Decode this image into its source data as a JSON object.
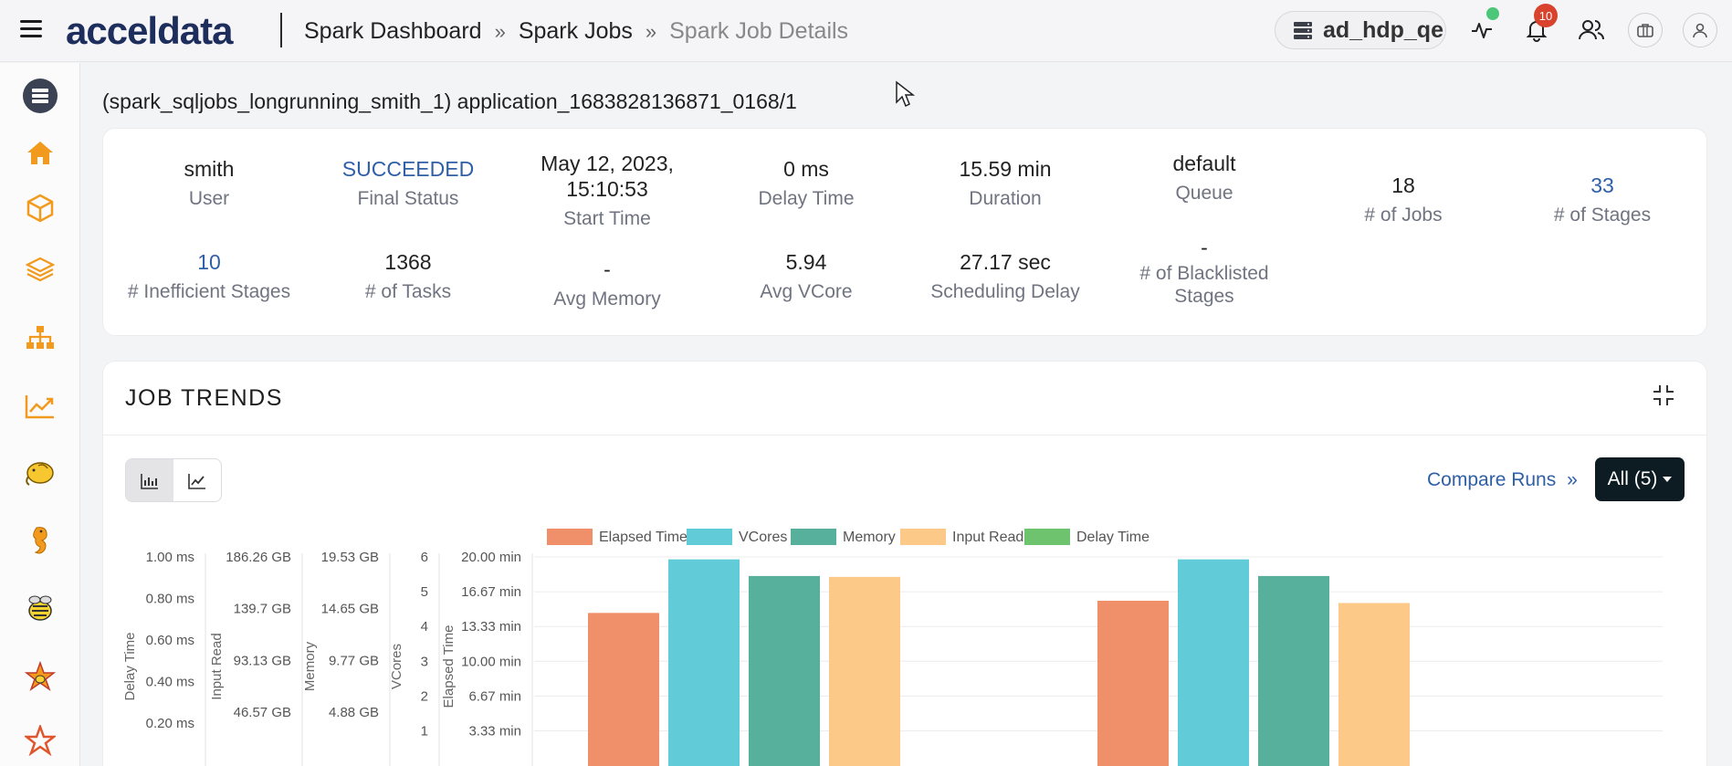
{
  "app": {
    "brand": "acceldata",
    "breadcrumb": [
      "Spark Dashboard",
      "Spark Jobs",
      "Spark Job Details"
    ],
    "cluster": "ad_hdp_qe",
    "notification_count": "10"
  },
  "page": {
    "title": "(spark_sqljobs_longrunning_smith_1) application_1683828136871_0168/1"
  },
  "stats": {
    "user": {
      "value": "smith",
      "label": "User"
    },
    "final_status": {
      "value": "SUCCEEDED",
      "label": "Final Status"
    },
    "start_time": {
      "value_line1": "May 12, 2023,",
      "value_line2": "15:10:53",
      "label": "Start Time"
    },
    "delay_time": {
      "value": "0 ms",
      "label": "Delay Time"
    },
    "duration": {
      "value": "15.59 min",
      "label": "Duration"
    },
    "queue": {
      "value": "default",
      "label": "Queue"
    },
    "jobs": {
      "value": "18",
      "label": "# of Jobs"
    },
    "stages": {
      "value": "33",
      "label": "# of Stages"
    },
    "inefficient_stages": {
      "value": "10",
      "label": "# Inefficient Stages"
    },
    "tasks": {
      "value": "1368",
      "label": "# of Tasks"
    },
    "avg_memory": {
      "value": "-",
      "label": "Avg Memory"
    },
    "avg_vcore": {
      "value": "5.94",
      "label": "Avg VCore"
    },
    "scheduling_delay": {
      "value": "27.17 sec",
      "label": "Scheduling Delay"
    },
    "blacklisted": {
      "value": "-",
      "label_line1": "# of Blacklisted",
      "label_line2": "Stages"
    }
  },
  "trends": {
    "title": "JOB TRENDS",
    "compare_label": "Compare Runs",
    "filter_label": "All (5)"
  },
  "chart_data": {
    "type": "bar",
    "legend": [
      "Elapsed Time",
      "VCores",
      "Memory",
      "Input Read",
      "Delay Time"
    ],
    "colors": {
      "Elapsed Time": "#f0906a",
      "VCores": "#62cbd8",
      "Memory": "#57b09c",
      "Input Read": "#fdc988",
      "Delay Time": "#6ec46e"
    },
    "axes": [
      {
        "label": "Delay Time",
        "ticks": [
          "1.00 ms",
          "0.80 ms",
          "0.60 ms",
          "0.40 ms",
          "0.20 ms"
        ]
      },
      {
        "label": "Input Read",
        "ticks": [
          "186.26 GB",
          "139.7 GB",
          "93.13 GB",
          "46.57 GB"
        ]
      },
      {
        "label": "Memory",
        "ticks": [
          "19.53 GB",
          "14.65 GB",
          "9.77 GB",
          "4.88 GB"
        ]
      },
      {
        "label": "VCores",
        "ticks": [
          "6",
          "5",
          "4",
          "3",
          "2",
          "1"
        ]
      },
      {
        "label": "Elapsed Time",
        "ticks": [
          "20.00 min",
          "16.67 min",
          "13.33 min",
          "10.00 min",
          "6.67 min",
          "3.33 min"
        ]
      }
    ],
    "groups": [
      {
        "elapsed_min": 15.4,
        "vcores": 5.94,
        "memory_gb": 18.0,
        "input_read_gb": 171.0,
        "delay_ms": 0
      },
      {
        "elapsed_min": 16.4,
        "vcores": 5.94,
        "memory_gb": 18.0,
        "input_read_gb": 151.0,
        "delay_ms": 0
      }
    ],
    "scales": {
      "elapsed_max_min": 20,
      "vcores_max": 6,
      "memory_max_gb": 19.53,
      "input_read_max_gb": 186.26,
      "delay_max_ms": 1.0
    }
  }
}
